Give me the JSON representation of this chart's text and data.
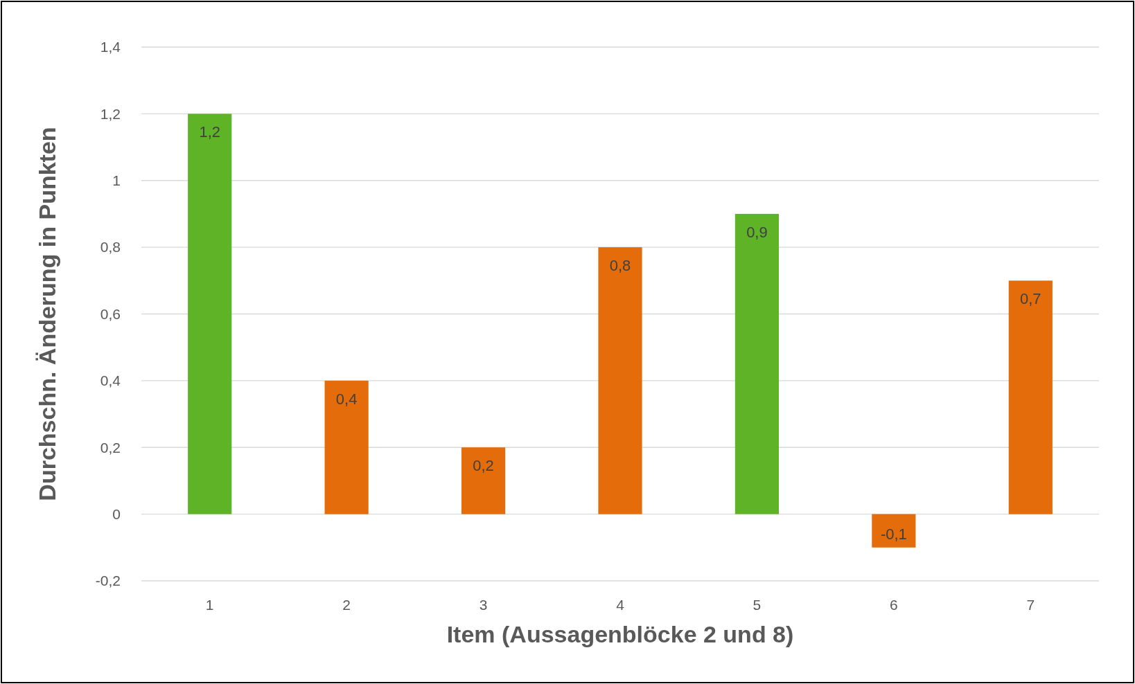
{
  "chart_data": {
    "type": "bar",
    "xlabel": "Item (Aussagenblöcke 2 und 8)",
    "ylabel": "Durchschn. Änderung in Punkten",
    "categories": [
      "1",
      "2",
      "3",
      "4",
      "5",
      "6",
      "7"
    ],
    "values": [
      1.2,
      0.4,
      0.2,
      0.8,
      0.9,
      -0.1,
      0.7
    ],
    "colors": [
      "#5fb327",
      "#e46c0a",
      "#e46c0a",
      "#e46c0a",
      "#5fb327",
      "#e46c0a",
      "#e46c0a"
    ],
    "value_labels": [
      "1,2",
      "0,4",
      "0,2",
      "0,8",
      "0,9",
      "-0,1",
      "0,7"
    ],
    "ylim": [
      -0.2,
      1.4
    ],
    "yticks": [
      {
        "value": -0.2,
        "label": "-0,2"
      },
      0,
      {
        "value": 0.2,
        "label": "0,2"
      },
      {
        "value": 0.4,
        "label": "0,4"
      },
      {
        "value": 0.6,
        "label": "0,6"
      },
      {
        "value": 0.8,
        "label": "0,8"
      },
      1,
      {
        "value": 1.2,
        "label": "1,2"
      },
      {
        "value": 1.4,
        "label": "1,4"
      }
    ],
    "grid": "y"
  }
}
